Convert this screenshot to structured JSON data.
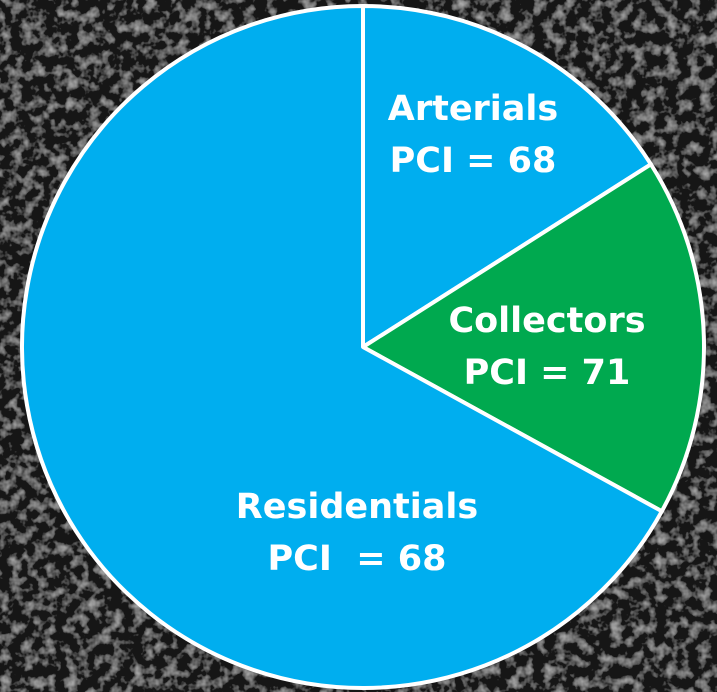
{
  "chart_data": {
    "type": "pie",
    "title": "",
    "start_angle_deg": 0,
    "direction": "clockwise",
    "slices": [
      {
        "name": "Arterials",
        "label_lines": [
          "Arterials",
          "PCI = 68"
        ],
        "percent": 16,
        "color": "#00aeef"
      },
      {
        "name": "Collectors",
        "label_lines": [
          "Collectors",
          "PCI = 71"
        ],
        "percent": 17,
        "color": "#00a94f"
      },
      {
        "name": "Residentials",
        "label_lines": [
          "Residentials",
          "PCI  = 68"
        ],
        "percent": 67,
        "color": "#00aeef"
      }
    ],
    "slice_border_color": "#ffffff"
  },
  "background": {
    "description_color": "#141414"
  }
}
